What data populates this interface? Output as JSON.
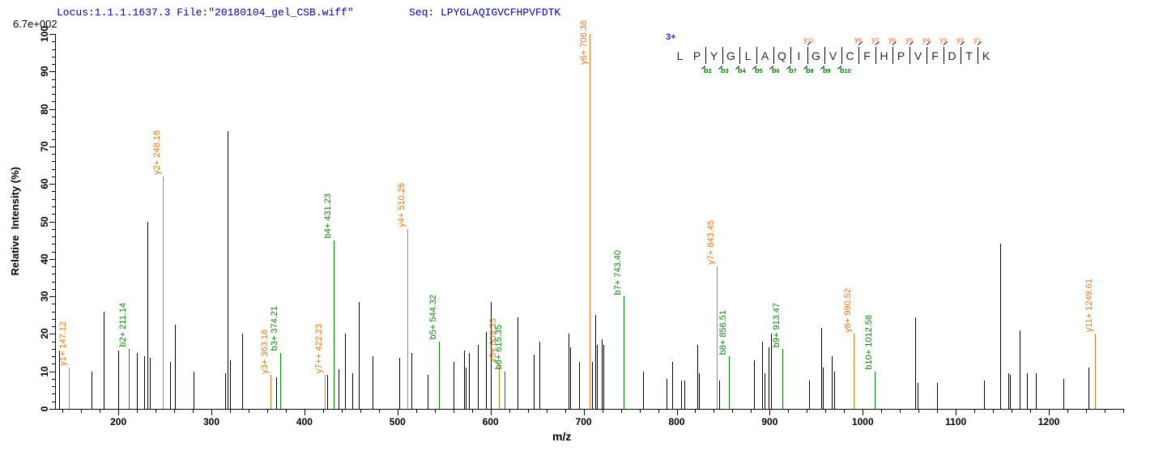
{
  "header": {
    "locus_text": "Locus:1.1.1.1637.3 File:\"20180104_gel_CSB.wiff\"",
    "seq_text": "Seq: LPYGLAQIGVCFHPVFDTK",
    "base_peak_intensity": "6.7e+002"
  },
  "peptide": {
    "charge_label": "3+",
    "sequence": "LPYGLAQIGVCFHPVFDTK",
    "residues": [
      {
        "aa": "L"
      },
      {
        "aa": "P"
      },
      {
        "aa": "Y",
        "b": "b2"
      },
      {
        "aa": "G",
        "b": "b3"
      },
      {
        "aa": "L",
        "b": "b4"
      },
      {
        "aa": "A",
        "b": "b5"
      },
      {
        "aa": "Q",
        "b": "b6"
      },
      {
        "aa": "I",
        "b": "b7"
      },
      {
        "aa": "G",
        "b": "b8",
        "y": "y11"
      },
      {
        "aa": "V",
        "b": "b9"
      },
      {
        "aa": "C",
        "b": "b10"
      },
      {
        "aa": "F",
        "y": "y8"
      },
      {
        "aa": "H",
        "y": "y7"
      },
      {
        "aa": "P",
        "y": "y6"
      },
      {
        "aa": "V",
        "y": "y5"
      },
      {
        "aa": "F",
        "y": "y4"
      },
      {
        "aa": "D",
        "y": "y3"
      },
      {
        "aa": "T",
        "y": "y2"
      },
      {
        "aa": "K",
        "y": "y1"
      }
    ]
  },
  "chart_data": {
    "type": "bar",
    "subtype": "ms2-stick-spectrum",
    "title": "",
    "xlabel": "m/z",
    "ylabel": "Relative  Intensity (%)",
    "xlim": [
      132,
      1280
    ],
    "ylim": [
      0,
      100
    ],
    "x_major_ticks": [
      200,
      300,
      400,
      500,
      600,
      700,
      800,
      900,
      1000,
      1100,
      1200
    ],
    "x_minor_step": 20,
    "y_major_ticks": [
      0,
      10,
      20,
      30,
      40,
      50,
      60,
      70,
      80,
      90,
      100
    ],
    "y_minor_step": 2,
    "grid": false,
    "fragment_peaks": [
      {
        "label": "y1+ 147.12",
        "ion": "y",
        "mz": 147.12,
        "intensity": 11
      },
      {
        "label": "b2+ 211.14",
        "ion": "b",
        "mz": 211.14,
        "intensity": 16
      },
      {
        "label": "y2+ 248.16",
        "ion": "y",
        "mz": 248.16,
        "intensity": 62
      },
      {
        "label": "y3+ 363.18",
        "ion": "y",
        "mz": 363.18,
        "intensity": 9
      },
      {
        "label": "b3+ 374.21",
        "ion": "b",
        "mz": 374.21,
        "intensity": 15
      },
      {
        "label": "y7++ 422.23",
        "ion": "y",
        "mz": 422.23,
        "intensity": 9
      },
      {
        "label": "b4+ 431.23",
        "ion": "b",
        "mz": 431.23,
        "intensity": 45
      },
      {
        "label": "y4+ 510.26",
        "ion": "y",
        "mz": 510.26,
        "intensity": 48
      },
      {
        "label": "b5+ 544.32",
        "ion": "b",
        "mz": 544.32,
        "intensity": 18
      },
      {
        "label": "y5+ 609.33",
        "ion": "y",
        "mz": 609.33,
        "intensity": 12
      },
      {
        "label": "b6+ 615.35",
        "ion": "b",
        "mz": 615.35,
        "intensity": 10
      },
      {
        "label": "y6+ 706.38",
        "ion": "y",
        "mz": 706.38,
        "intensity": 100
      },
      {
        "label": "b7+ 743.40",
        "ion": "b",
        "mz": 743.4,
        "intensity": 30
      },
      {
        "label": "y7+ 843.45",
        "ion": "y",
        "mz": 843.45,
        "intensity": 38
      },
      {
        "label": "b8+ 856.51",
        "ion": "b",
        "mz": 856.51,
        "intensity": 14
      },
      {
        "label": "b9+ 913.47",
        "ion": "b",
        "mz": 913.47,
        "intensity": 16
      },
      {
        "label": "y8+ 990.52",
        "ion": "y",
        "mz": 990.52,
        "intensity": 20
      },
      {
        "label": "b10+ 1012.58",
        "ion": "b",
        "mz": 1012.58,
        "intensity": 10
      },
      {
        "label": "y11+ 1249.61",
        "ion": "y",
        "mz": 1249.61,
        "intensity": 20
      }
    ],
    "unassigned_peaks": [
      [
        136,
        15.5
      ],
      [
        171,
        10
      ],
      [
        184,
        26
      ],
      [
        200,
        15.5
      ],
      [
        220,
        15
      ],
      [
        228,
        14
      ],
      [
        231,
        50
      ],
      [
        233.5,
        13.5
      ],
      [
        256,
        12.5
      ],
      [
        261,
        22.5
      ],
      [
        281,
        10
      ],
      [
        314.5,
        9.5
      ],
      [
        317.8,
        74
      ],
      [
        320,
        13
      ],
      [
        333,
        20
      ],
      [
        370,
        8.5
      ],
      [
        424.5,
        9
      ],
      [
        437,
        10.5
      ],
      [
        444,
        20
      ],
      [
        451,
        9.5
      ],
      [
        458.5,
        28.5
      ],
      [
        473,
        14
      ],
      [
        501.5,
        13.5
      ],
      [
        515,
        15
      ],
      [
        532.5,
        9
      ],
      [
        560,
        12.5
      ],
      [
        571.5,
        15.5
      ],
      [
        573.5,
        11
      ],
      [
        577,
        15
      ],
      [
        586,
        17
      ],
      [
        595,
        20.5
      ],
      [
        600.2,
        28.5
      ],
      [
        629,
        24.5
      ],
      [
        646.5,
        14.5
      ],
      [
        652.5,
        18
      ],
      [
        683.5,
        20
      ],
      [
        685.5,
        16.5
      ],
      [
        695,
        12.5
      ],
      [
        709,
        12.5
      ],
      [
        712.5,
        25
      ],
      [
        714.5,
        17
      ],
      [
        719.5,
        18.5
      ],
      [
        721.5,
        17
      ],
      [
        764,
        10
      ],
      [
        789,
        8
      ],
      [
        795,
        12.5
      ],
      [
        804.5,
        7.5
      ],
      [
        808,
        7.5
      ],
      [
        822,
        17
      ],
      [
        824,
        9.5
      ],
      [
        846,
        7.5
      ],
      [
        883,
        13
      ],
      [
        892,
        18
      ],
      [
        894.5,
        9.5
      ],
      [
        899,
        16.5
      ],
      [
        901.5,
        20
      ],
      [
        942.5,
        7.5
      ],
      [
        955,
        21.5
      ],
      [
        957,
        11
      ],
      [
        967,
        14
      ],
      [
        969.5,
        10
      ],
      [
        1056.5,
        24.5
      ],
      [
        1058.5,
        7
      ],
      [
        1080,
        7
      ],
      [
        1130,
        7.5
      ],
      [
        1148,
        44
      ],
      [
        1156,
        9.5
      ],
      [
        1158,
        9
      ],
      [
        1169,
        21
      ],
      [
        1176,
        9.5
      ],
      [
        1186,
        9.5
      ],
      [
        1216,
        8
      ],
      [
        1243,
        11
      ]
    ]
  },
  "colors": {
    "y_ion": "#e2761e",
    "b_ion": "#0b830b",
    "ladder_y": "#f19163",
    "ladder_b": "#008000",
    "charge": "#2424cc",
    "title_text": "#000099",
    "axis": "#000000",
    "unassigned_peak": "#000000"
  }
}
